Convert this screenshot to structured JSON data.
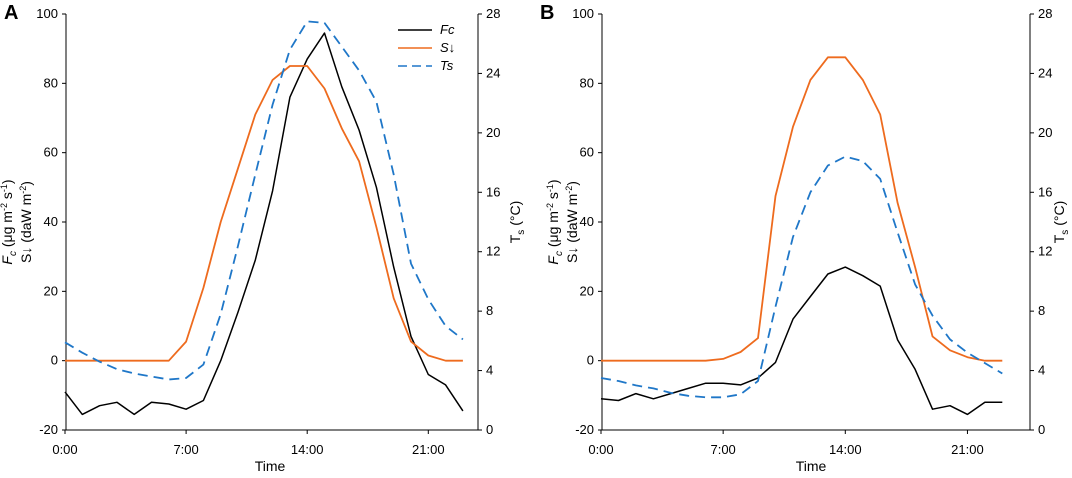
{
  "chart_data": [
    {
      "panel_label": "A",
      "type": "line",
      "xlabel": "Time",
      "xticks": [
        "0:00",
        "7:00",
        "14:00",
        "21:00"
      ],
      "x_hours": [
        0,
        1,
        2,
        3,
        4,
        5,
        6,
        7,
        8,
        9,
        10,
        11,
        12,
        13,
        14,
        15,
        16,
        17,
        18,
        19,
        20,
        21,
        22,
        23
      ],
      "ylabel_left_main": "F",
      "ylabel_left_sub": "c",
      "ylabel_left_units": "(μg m",
      "ylabel_left_units_exp": "-2",
      "ylabel_left_units_s": " s",
      "ylabel_left_units_s_exp": "-1",
      "ylabel_left_units_end": ")",
      "ylabel_left2": "S↓ (daW m",
      "ylabel_left2_exp": "-2",
      "ylabel_left2_end": ")",
      "ylim_left": [
        -20,
        100
      ],
      "yticks_left": [
        "-20",
        "0",
        "20",
        "40",
        "60",
        "80",
        "100"
      ],
      "ylabel_right_main": "T",
      "ylabel_right_sub": "s",
      "ylabel_right_units": " (°C)",
      "ylim_right": [
        0,
        28
      ],
      "yticks_right": [
        "0",
        "4",
        "8",
        "12",
        "16",
        "20",
        "24",
        "28"
      ],
      "legend": [
        "Fc",
        "S↓",
        "Ts"
      ],
      "series": [
        {
          "name": "Fc",
          "axis": "left",
          "color": "#000000",
          "values": [
            -9,
            -15.5,
            -13,
            -12,
            -15.5,
            -12,
            -12.5,
            -14,
            -11.5,
            0,
            14,
            29,
            49,
            76,
            87,
            94.5,
            79,
            66.5,
            50,
            27,
            7,
            -4,
            -7,
            -14.5
          ]
        },
        {
          "name": "S↓",
          "axis": "left",
          "color": "#ee6b1e",
          "values": [
            0,
            0,
            0,
            0,
            0,
            0,
            0,
            5.5,
            21,
            40,
            55.5,
            71,
            81,
            85,
            85,
            78.5,
            67,
            57.5,
            38.5,
            18,
            5.5,
            1.5,
            0,
            0
          ]
        },
        {
          "name": "Ts",
          "axis": "right",
          "color": "#1f77c8",
          "values": [
            5.9,
            5.2,
            4.6,
            4.1,
            3.8,
            3.6,
            3.4,
            3.5,
            4.4,
            7.8,
            12.4,
            17.2,
            21.9,
            25.6,
            27.5,
            27.4,
            25.8,
            24.2,
            22.1,
            17.2,
            11.2,
            8.8,
            7.0,
            6.1
          ]
        }
      ]
    },
    {
      "panel_label": "B",
      "type": "line",
      "xlabel": "Time",
      "xticks": [
        "0:00",
        "7:00",
        "14:00",
        "21:00"
      ],
      "x_hours": [
        0,
        1,
        2,
        3,
        4,
        5,
        6,
        7,
        8,
        9,
        10,
        11,
        12,
        13,
        14,
        15,
        16,
        17,
        18,
        19,
        20,
        21,
        22,
        23
      ],
      "ylabel_left_main": "F",
      "ylabel_left_sub": "c",
      "ylabel_left_units": "(μg m",
      "ylabel_left_units_exp": "-2",
      "ylabel_left_units_s": " s",
      "ylabel_left_units_s_exp": "-1",
      "ylabel_left_units_end": ")",
      "ylabel_left2": "S↓ (daW m",
      "ylabel_left2_exp": "-2",
      "ylabel_left2_end": ")",
      "ylim_left": [
        -20,
        100
      ],
      "yticks_left": [
        "-20",
        "0",
        "20",
        "40",
        "60",
        "80",
        "100"
      ],
      "ylabel_right_main": "T",
      "ylabel_right_sub": "s",
      "ylabel_right_units": " (°C)",
      "ylim_right": [
        0,
        28
      ],
      "yticks_right": [
        "0",
        "4",
        "8",
        "12",
        "16",
        "20",
        "24",
        "28"
      ],
      "series": [
        {
          "name": "Fc",
          "axis": "left",
          "color": "#000000",
          "values": [
            -11,
            -11.5,
            -9.5,
            -11,
            -9.5,
            -8,
            -6.5,
            -6.5,
            -7,
            -5,
            -0.5,
            12,
            18.5,
            25,
            27,
            24.5,
            21.5,
            6,
            -2.5,
            -14,
            -13,
            -15.5,
            -12,
            -12
          ]
        },
        {
          "name": "S↓",
          "axis": "left",
          "color": "#ee6b1e",
          "values": [
            0,
            0,
            0,
            0,
            0,
            0,
            0,
            0.5,
            2.5,
            6.5,
            47.5,
            67.5,
            81,
            87.5,
            87.5,
            81,
            71,
            45.5,
            27,
            7,
            3,
            1,
            0,
            0
          ]
        },
        {
          "name": "Ts",
          "axis": "right",
          "color": "#1f77c8",
          "values": [
            3.5,
            3.3,
            3.0,
            2.8,
            2.5,
            2.3,
            2.2,
            2.2,
            2.4,
            3.3,
            8.3,
            13.0,
            16.0,
            17.8,
            18.4,
            18.1,
            16.9,
            13.3,
            9.8,
            7.7,
            6.1,
            5.2,
            4.5,
            3.8
          ]
        }
      ]
    }
  ]
}
